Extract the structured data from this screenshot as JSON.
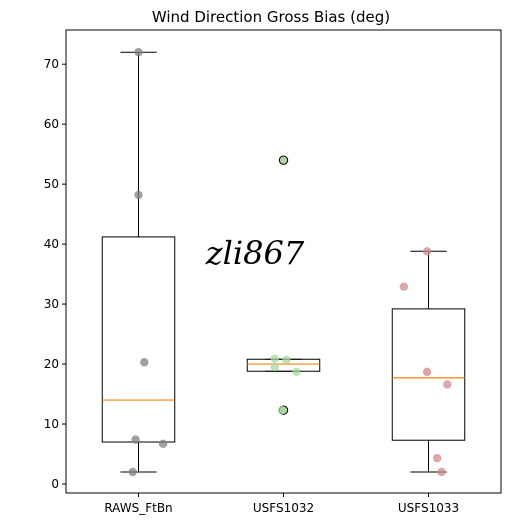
{
  "chart_data": {
    "type": "box",
    "title": "Wind Direction Gross Bias (deg)",
    "xlabel": "",
    "ylabel": "",
    "ylim": [
      -1.5,
      75.7
    ],
    "yticks": [
      0,
      10,
      20,
      30,
      40,
      50,
      60,
      70
    ],
    "grid": false,
    "categories": [
      "RAWS_FtBn",
      "USFS1032",
      "USFS1033"
    ],
    "boxes": [
      {
        "label": "RAWS_FtBn",
        "whisker_low": 2.0,
        "q1": 7.0,
        "median": 14.0,
        "q3": 41.2,
        "whisker_high": 72.0,
        "outliers": [],
        "points": [
          {
            "dx": 0.0,
            "y": 72.0
          },
          {
            "dx": 0.0,
            "y": 48.2
          },
          {
            "dx": 0.04,
            "y": 20.3
          },
          {
            "dx": -0.02,
            "y": 7.4
          },
          {
            "dx": 0.17,
            "y": 6.7
          },
          {
            "dx": -0.04,
            "y": 2.0
          }
        ],
        "point_color": "#808080"
      },
      {
        "label": "USFS1032",
        "whisker_low": 18.8,
        "q1": 18.8,
        "median": 20.0,
        "q3": 20.8,
        "whisker_high": 20.8,
        "outliers": [
          54.0,
          12.3
        ],
        "points": [
          {
            "dx": -0.06,
            "y": 20.9
          },
          {
            "dx": 0.02,
            "y": 20.7
          },
          {
            "dx": -0.06,
            "y": 19.5
          },
          {
            "dx": 0.09,
            "y": 18.7
          },
          {
            "dx": -0.01,
            "y": 12.3
          }
        ],
        "point_color": "#a8d8a0"
      },
      {
        "label": "USFS1033",
        "whisker_low": 2.0,
        "q1": 7.3,
        "median": 17.7,
        "q3": 29.2,
        "whisker_high": 38.8,
        "outliers": [],
        "points": [
          {
            "dx": -0.01,
            "y": 38.8
          },
          {
            "dx": -0.17,
            "y": 32.9
          },
          {
            "dx": -0.01,
            "y": 18.7
          },
          {
            "dx": 0.13,
            "y": 16.6
          },
          {
            "dx": 0.06,
            "y": 4.3
          },
          {
            "dx": 0.09,
            "y": 2.0
          }
        ],
        "point_color": "#d08a8a"
      }
    ],
    "colors": {
      "box_edge": "#000000",
      "median": "#ff7f0e",
      "flier_fill": "#a8d8a0"
    }
  },
  "watermark": {
    "text": "zli867"
  }
}
